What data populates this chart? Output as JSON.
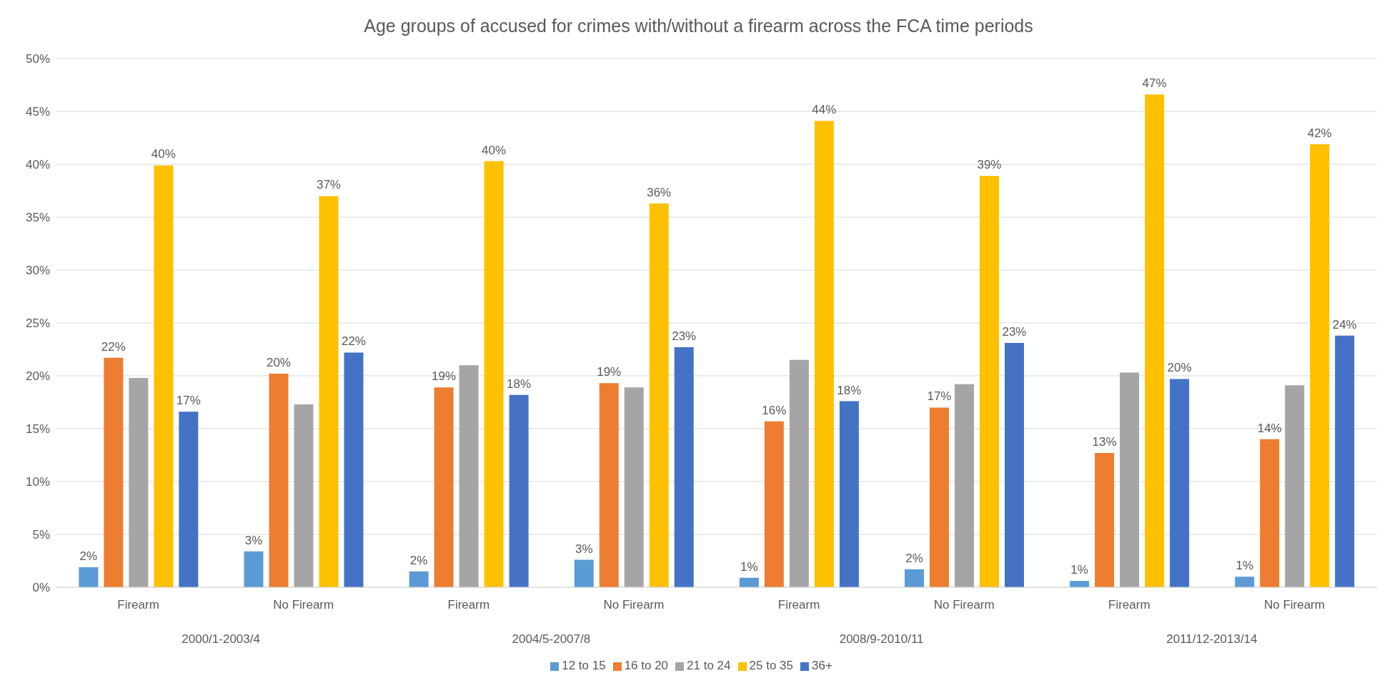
{
  "chart_data": {
    "type": "bar",
    "title": "Age groups of accused for crimes with/without a firearm across the FCA time periods",
    "categories": [
      "Firearm",
      "No Firearm",
      "Firearm",
      "No Firearm",
      "Firearm",
      "No Firearm",
      "Firearm",
      "No Firearm"
    ],
    "annotations": [
      "2000/1-2003/4",
      "2004/5-2007/8",
      "2008/9-2010/11",
      "2011/12-2013/14"
    ],
    "series": [
      {
        "name": "12 to 15",
        "color": "#5b9bd5",
        "values": [
          1.9,
          3.4,
          1.5,
          2.6,
          0.9,
          1.7,
          0.6,
          1.0
        ],
        "value_labels": [
          "2%",
          "3%",
          "2%",
          "3%",
          "1%",
          "2%",
          "1%",
          "1%"
        ]
      },
      {
        "name": "16 to 20",
        "color": "#ed7d31",
        "values": [
          21.7,
          20.2,
          18.9,
          19.3,
          15.7,
          17.0,
          12.7,
          14.0
        ],
        "value_labels": [
          "22%",
          "20%",
          "19%",
          "19%",
          "16%",
          "17%",
          "13%",
          "14%"
        ]
      },
      {
        "name": "21 to 24",
        "color": "#a5a5a5",
        "values": [
          19.8,
          17.3,
          21.0,
          18.9,
          21.5,
          19.2,
          20.3,
          19.1
        ]
      },
      {
        "name": "25 to 35",
        "color": "#ffc000",
        "values": [
          39.9,
          37.0,
          40.3,
          36.3,
          44.1,
          38.9,
          46.6,
          41.9
        ],
        "value_labels": [
          "40%",
          "37%",
          "40%",
          "36%",
          "44%",
          "39%",
          "47%",
          "42%"
        ]
      },
      {
        "name": "36+",
        "color": "#4472c4",
        "values": [
          16.6,
          22.2,
          18.2,
          22.7,
          17.6,
          23.1,
          19.7,
          23.8
        ],
        "value_labels": [
          "17%",
          "22%",
          "18%",
          "23%",
          "18%",
          "23%",
          "20%",
          "24%"
        ]
      }
    ],
    "ylim": [
      0,
      50
    ],
    "yticks": [
      {
        "value": 0,
        "label": "0%"
      },
      {
        "value": 5,
        "label": "5%"
      },
      {
        "value": 10,
        "label": "10%"
      },
      {
        "value": 15,
        "label": "15%"
      },
      {
        "value": 20,
        "label": "20%"
      },
      {
        "value": 25,
        "label": "25%"
      },
      {
        "value": 30,
        "label": "30%"
      },
      {
        "value": 35,
        "label": "35%"
      },
      {
        "value": 40,
        "label": "40%"
      },
      {
        "value": 45,
        "label": "45%"
      },
      {
        "value": 50,
        "label": "50%"
      }
    ],
    "grid": "y",
    "legend": "bottom"
  }
}
